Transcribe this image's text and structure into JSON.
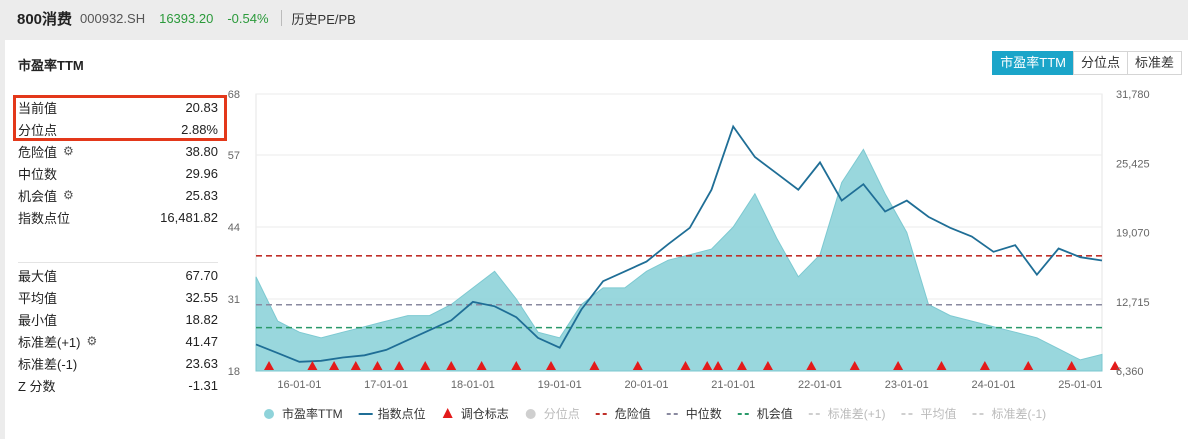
{
  "header": {
    "name": "800消费",
    "code": "000932.SH",
    "price": "16393.20",
    "change": "-0.54%",
    "tool": "历史PE/PB"
  },
  "panel": {
    "title": "市盈率TTM",
    "tabs": [
      {
        "label": "市盈率TTM",
        "active": true
      },
      {
        "label": "分位点",
        "active": false
      },
      {
        "label": "标准差",
        "active": false
      }
    ]
  },
  "stats_top": [
    {
      "label": "当前值",
      "value": "20.83",
      "gear": false
    },
    {
      "label": "分位点",
      "value": "2.88%",
      "gear": false
    },
    {
      "label": "危险值",
      "value": "38.80",
      "gear": true
    },
    {
      "label": "中位数",
      "value": "29.96",
      "gear": false
    },
    {
      "label": "机会值",
      "value": "25.83",
      "gear": true
    },
    {
      "label": "指数点位",
      "value": "16,481.82",
      "gear": false
    }
  ],
  "stats_bottom": [
    {
      "label": "最大值",
      "value": "67.70",
      "gear": false
    },
    {
      "label": "平均值",
      "value": "32.55",
      "gear": false
    },
    {
      "label": "最小值",
      "value": "18.82",
      "gear": false
    },
    {
      "label": "标准差(+1)",
      "value": "41.47",
      "gear": true
    },
    {
      "label": "标准差(-1)",
      "value": "23.63",
      "gear": false
    },
    {
      "label": "Z 分数",
      "value": "-1.31",
      "gear": false
    }
  ],
  "colors": {
    "accent": "#1ba5c9",
    "area_fill": "#8fd3da",
    "area_stroke": "#6fc4cd",
    "index_line": "#1f6e96",
    "danger": "#c0302a",
    "median": "#8a8aa0",
    "opportunity": "#2a9a6a",
    "marker": "#e31b1b",
    "highlight": "#e3381a"
  },
  "chart_data": {
    "type": "area",
    "title": "市盈率TTM",
    "x": [
      "15-07",
      "15-10",
      "16-01",
      "16-04",
      "16-07",
      "16-10",
      "17-01",
      "17-04",
      "17-07",
      "17-10",
      "18-01",
      "18-04",
      "18-07",
      "18-10",
      "19-01",
      "19-04",
      "19-07",
      "19-10",
      "20-01",
      "20-04",
      "20-07",
      "20-10",
      "21-01",
      "21-04",
      "21-07",
      "21-10",
      "22-01",
      "22-04",
      "22-07",
      "22-10",
      "23-01",
      "23-04",
      "23-07",
      "23-10",
      "24-01",
      "24-04",
      "24-07",
      "24-10",
      "25-01",
      "25-03"
    ],
    "x_tick_labels": [
      "16-01-01",
      "17-01-01",
      "18-01-01",
      "19-01-01",
      "20-01-01",
      "21-01-01",
      "22-01-01",
      "23-01-01",
      "24-01-01",
      "25-01-01"
    ],
    "x_tick_index": [
      2,
      6,
      10,
      14,
      18,
      22,
      26,
      30,
      34,
      38
    ],
    "series": [
      {
        "name": "市盈率TTM",
        "axis": "left",
        "values": [
          35,
          27,
          25,
          24,
          25,
          26,
          27,
          28,
          28,
          30,
          33,
          36,
          31,
          25,
          24,
          30,
          33,
          33,
          36,
          38,
          39,
          40,
          44,
          50,
          42,
          35,
          39,
          52,
          58,
          50,
          43,
          30,
          28,
          27,
          26,
          25,
          24,
          22,
          20,
          21
        ]
      },
      {
        "name": "指数点位",
        "axis": "right",
        "values": [
          8800,
          8000,
          7200,
          7300,
          7600,
          7800,
          8300,
          9200,
          10100,
          11000,
          12700,
          12300,
          11300,
          9400,
          8500,
          12000,
          14600,
          15500,
          16400,
          18000,
          19500,
          23000,
          28800,
          26000,
          24500,
          23000,
          25500,
          22000,
          23500,
          21000,
          22000,
          20500,
          19500,
          18700,
          17300,
          17900,
          15200,
          17600,
          16800,
          16500
        ]
      }
    ],
    "markers_x": [
      0.6,
      2.6,
      3.6,
      4.6,
      5.6,
      6.6,
      7.8,
      9.0,
      10.4,
      12.0,
      13.6,
      15.6,
      17.6,
      19.8,
      20.8,
      21.3,
      22.4,
      23.6,
      25.6,
      27.6,
      29.6,
      31.6,
      33.6,
      35.6,
      37.6,
      39.6
    ],
    "reference_lines": [
      {
        "name": "危险值",
        "value": 38.8
      },
      {
        "name": "中位数",
        "value": 29.96
      },
      {
        "name": "机会值",
        "value": 25.83
      }
    ],
    "left_axis": {
      "ylim": [
        18,
        68
      ],
      "ticks": [
        "18",
        "31",
        "44",
        "57",
        "68"
      ],
      "tick_values": [
        18,
        31,
        44,
        57,
        68
      ]
    },
    "right_axis": {
      "ylim": [
        6360,
        31780
      ],
      "ticks": [
        "6,360",
        "12,715",
        "19,070",
        "25,425",
        "31,780"
      ],
      "tick_values": [
        6360,
        12715,
        19070,
        25425,
        31780
      ]
    },
    "legend": [
      {
        "label": "市盈率TTM",
        "kind": "dot",
        "color": "#8fd3da",
        "enabled": true
      },
      {
        "label": "指数点位",
        "kind": "line",
        "color": "#1f6e96",
        "enabled": true
      },
      {
        "label": "调仓标志",
        "kind": "triangle",
        "color": "#e31b1b",
        "enabled": true
      },
      {
        "label": "分位点",
        "kind": "dot",
        "color": "#cfcfcf",
        "enabled": false
      },
      {
        "label": "危险值",
        "kind": "dash",
        "color": "#c0302a",
        "enabled": true
      },
      {
        "label": "中位数",
        "kind": "dash",
        "color": "#8a8aa0",
        "enabled": true
      },
      {
        "label": "机会值",
        "kind": "dash",
        "color": "#2a9a6a",
        "enabled": true
      },
      {
        "label": "标准差(+1)",
        "kind": "dash",
        "color": "#cfcfcf",
        "enabled": false
      },
      {
        "label": "平均值",
        "kind": "dash",
        "color": "#cfcfcf",
        "enabled": false
      },
      {
        "label": "标准差(-1)",
        "kind": "dash",
        "color": "#cfcfcf",
        "enabled": false
      }
    ],
    "legend_position": "bottom"
  }
}
